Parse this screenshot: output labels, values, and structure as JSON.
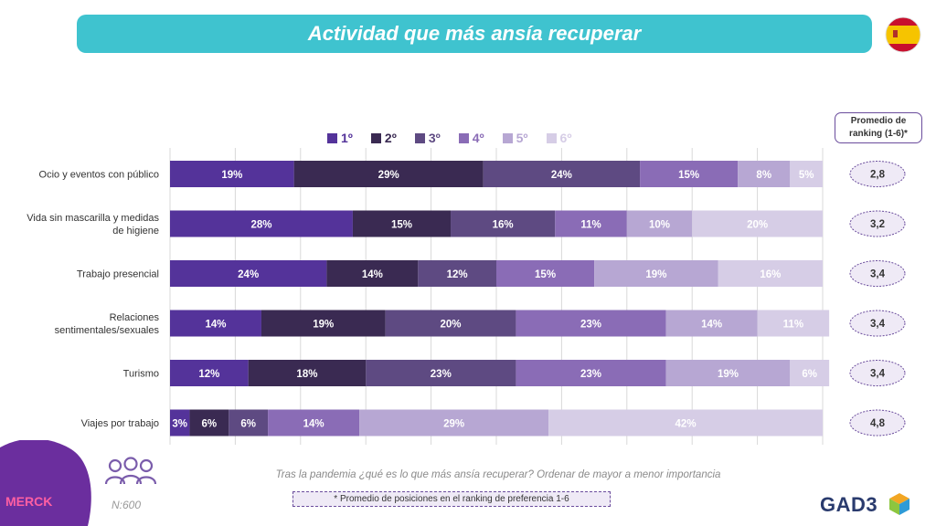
{
  "title": "Actividad que más ansía recuperar",
  "avg_header": {
    "line1": "Promedio de",
    "line2": "ranking (1-6)*"
  },
  "chart_data": {
    "type": "bar",
    "orientation": "horizontal-stacked-100",
    "categories": [
      [
        "Ocio y eventos con público"
      ],
      [
        "Vida sin mascarilla y medidas",
        "de higiene"
      ],
      [
        "Trabajo presencial"
      ],
      [
        "Relaciones",
        "sentimentales/sexuales"
      ],
      [
        "Turismo"
      ],
      [
        "Viajes por trabajo"
      ]
    ],
    "series": [
      {
        "name": "1º",
        "color": "#54339a",
        "label_color": "#ffffff",
        "values": [
          19,
          28,
          24,
          14,
          12,
          3
        ]
      },
      {
        "name": "2º",
        "color": "#3a2a52",
        "label_color": "#ffffff",
        "values": [
          29,
          15,
          14,
          19,
          18,
          6
        ]
      },
      {
        "name": "3º",
        "color": "#5e4a82",
        "label_color": "#ffffff",
        "values": [
          24,
          16,
          12,
          20,
          23,
          6
        ]
      },
      {
        "name": "4º",
        "color": "#8a6cb6",
        "label_color": "#ffffff",
        "values": [
          15,
          11,
          15,
          23,
          23,
          14
        ]
      },
      {
        "name": "5º",
        "color": "#b7a7d3",
        "label_color": "#ffffff",
        "values": [
          8,
          10,
          19,
          14,
          19,
          29
        ]
      },
      {
        "name": "6º",
        "color": "#d6cde6",
        "label_color": "#ffffff",
        "values": [
          5,
          20,
          16,
          11,
          6,
          42
        ]
      }
    ],
    "value_suffix": "%",
    "averages": [
      "2,8",
      "3,2",
      "3,4",
      "3,4",
      "3,4",
      "4,8"
    ],
    "grid": true,
    "legend_position": "top"
  },
  "footnote": "Tras la pandemia ¿qué es lo que más ansía recuperar? Ordenar de mayor a menor importancia",
  "avg_note": "* Promedio de posiciones en el ranking de preferencia 1-6",
  "sample": "N:600",
  "brand_left": "MERCK",
  "brand_right": "GAD3"
}
